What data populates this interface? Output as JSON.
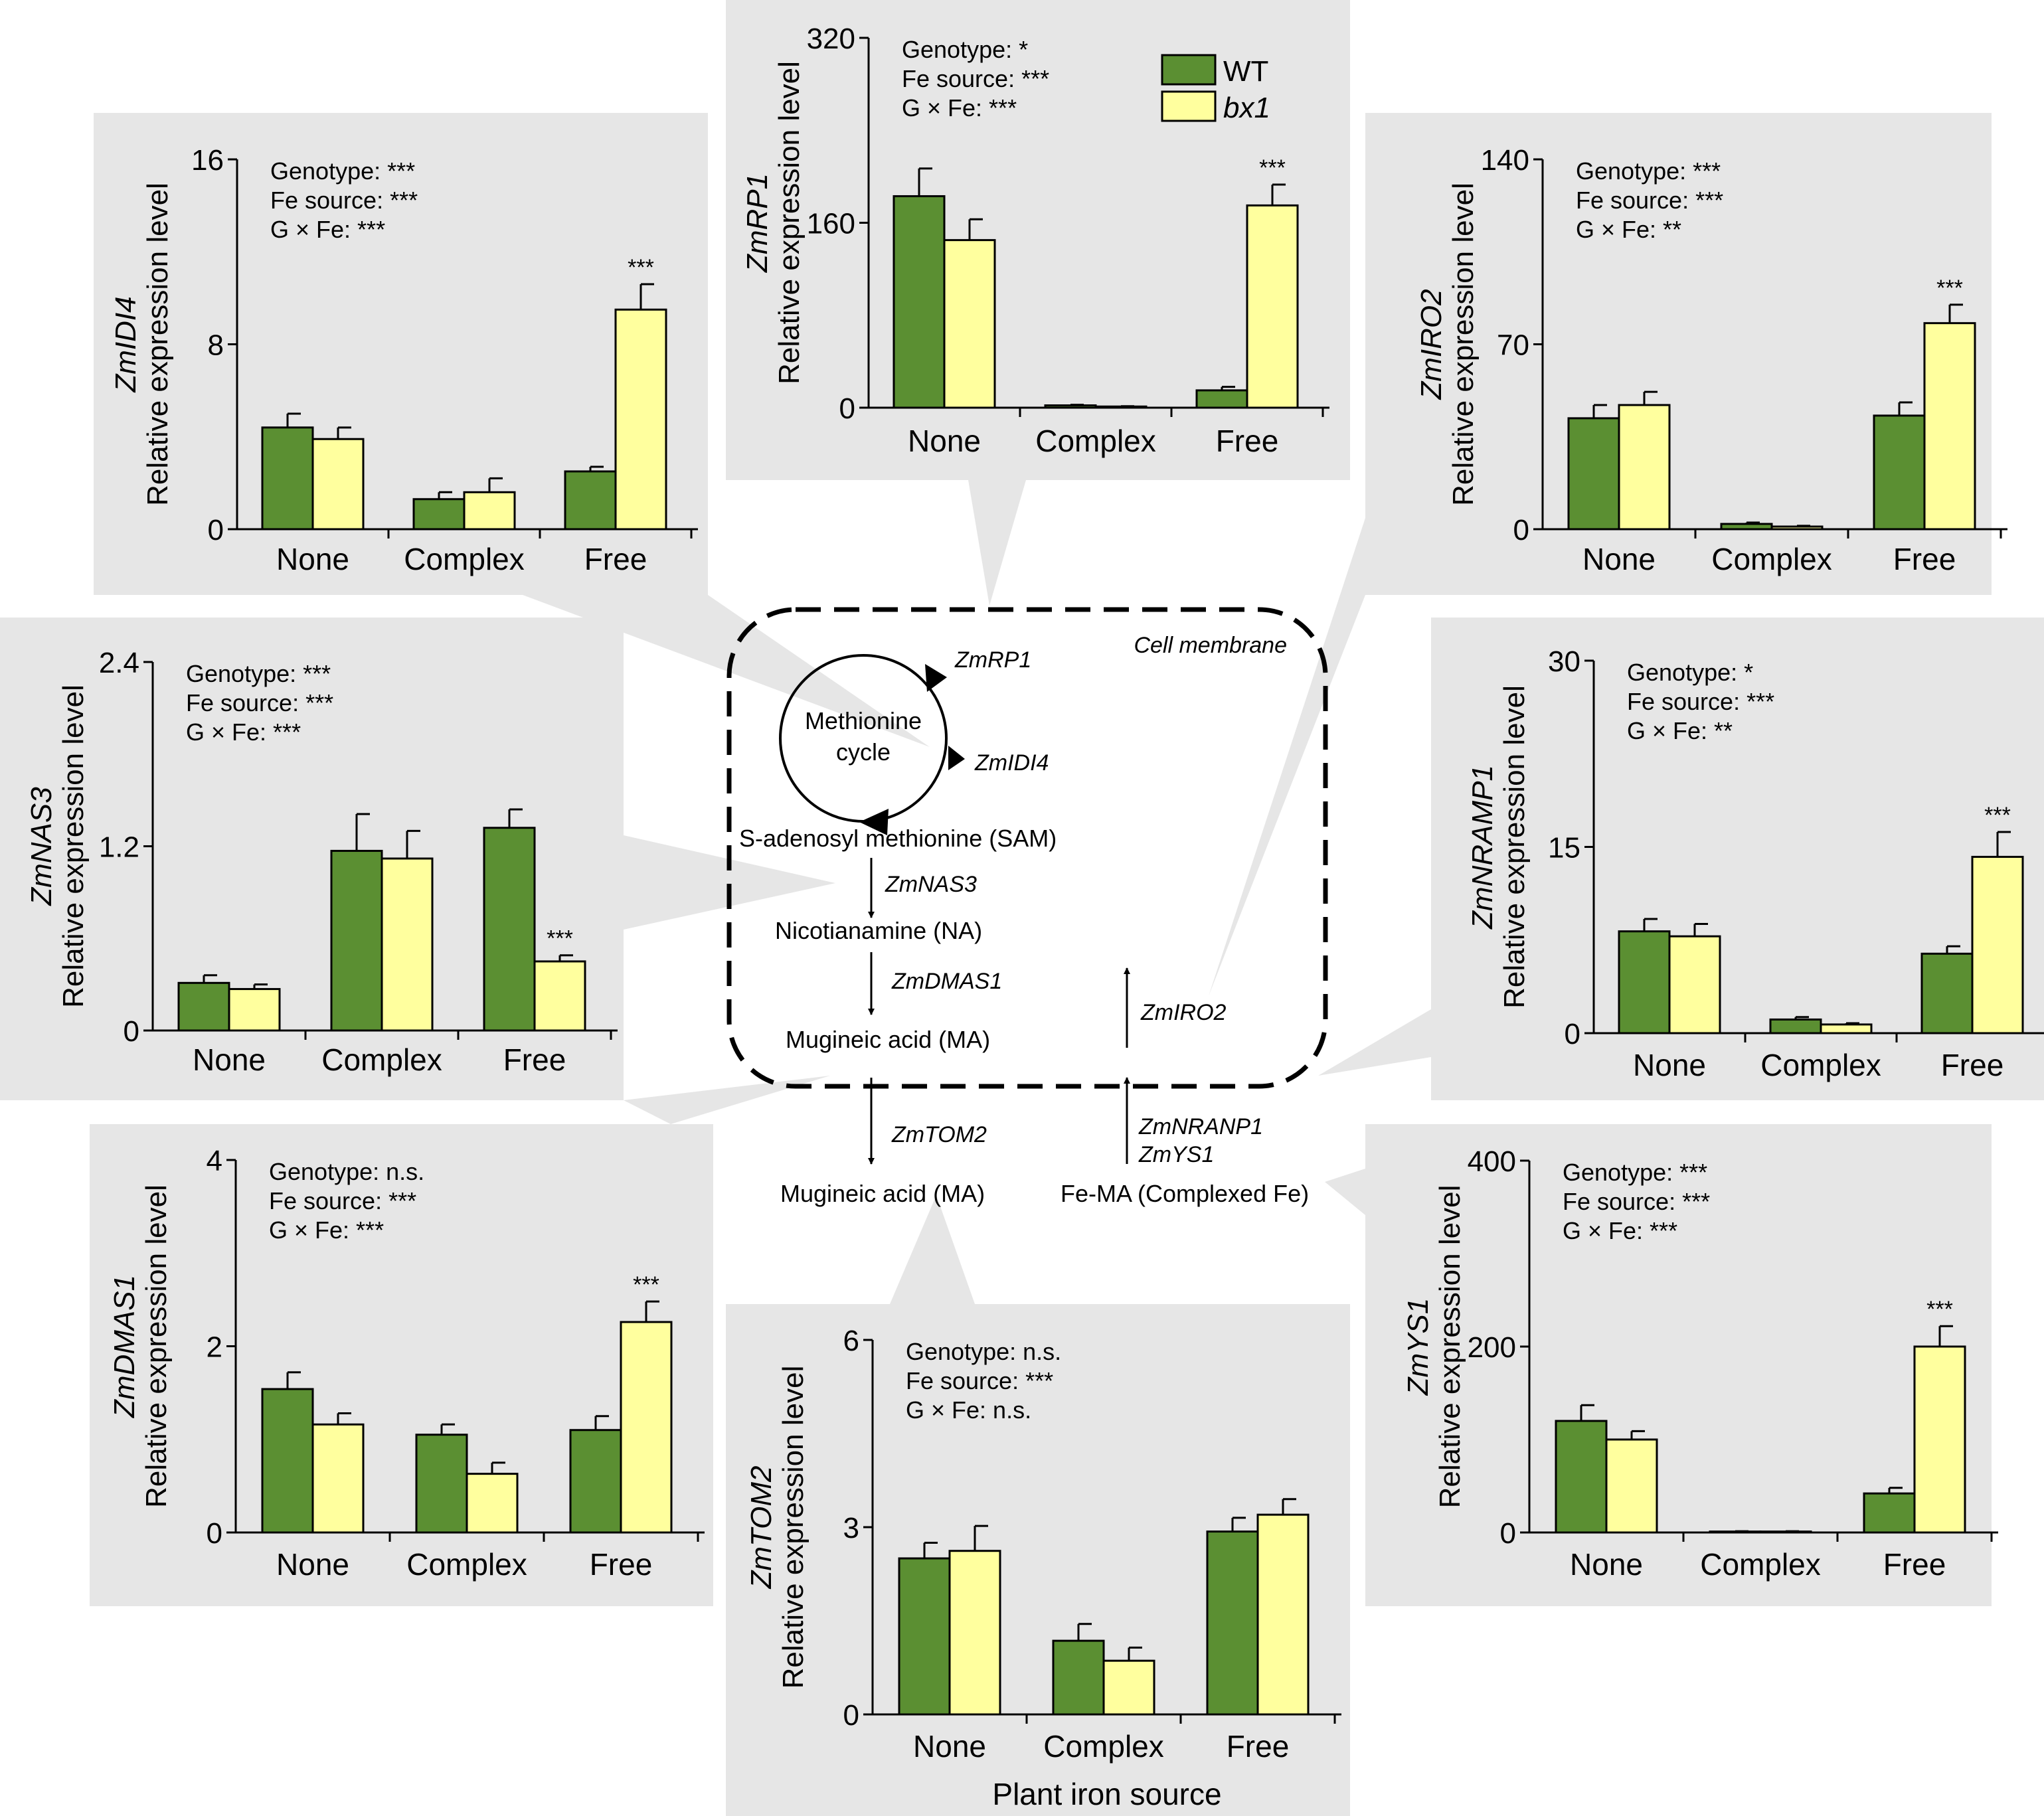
{
  "legend": {
    "entries": [
      {
        "name": "WT",
        "color": "#5b8f32"
      },
      {
        "name": "bx1",
        "color": "#ffff9e"
      }
    ],
    "placement": "top-center"
  },
  "colors": {
    "panel_background": "#e6e6e6",
    "wt": "#5b8f32",
    "bx1": "#ffff9e",
    "axis": "#000000"
  },
  "diagram": {
    "membrane_label": "Cell membrane",
    "cycle_label_line1": "Methionine",
    "cycle_label_line2": "cycle",
    "cycle_gene_1": "ZmRP1",
    "cycle_gene_2": "ZmIDI4",
    "sam": "S-adenosyl methionine (SAM)",
    "step_nas3": "ZmNAS3",
    "na": "Nicotianamine (NA)",
    "step_dmas1": "ZmDMAS1",
    "ma_inside": "Mugineic acid (MA)",
    "step_iro2": "ZmIRO2",
    "step_tom2": "ZmTOM2",
    "step_nranp1": "ZmNRANP1",
    "step_ys1": "ZmYS1",
    "ma_outside": "Mugineic acid (MA)",
    "fema": "Fe-MA (Complexed Fe)"
  },
  "chart_data": [
    {
      "id": "zmrp1",
      "type": "bar",
      "gene": "ZmRP1",
      "ylabel": "Relative expression level",
      "xlabel": "",
      "categories": [
        "None",
        "Complex",
        "Free"
      ],
      "series": [
        {
          "name": "WT",
          "values": [
            183,
            2,
            15
          ],
          "errors": [
            24,
            0.5,
            3
          ]
        },
        {
          "name": "bx1",
          "values": [
            145,
            1,
            175
          ],
          "errors": [
            18,
            0.3,
            18
          ]
        }
      ],
      "ylim": [
        0,
        320
      ],
      "yticks": [
        "0",
        "160",
        "320"
      ],
      "sig": [
        "",
        "",
        "***"
      ],
      "stats": [
        "Genotype: *",
        "Fe source: ***",
        "G × Fe: ***"
      ]
    },
    {
      "id": "zmidi4",
      "type": "bar",
      "gene": "ZmIDI4",
      "ylabel": "Relative expression level",
      "xlabel": "",
      "categories": [
        "None",
        "Complex",
        "Free"
      ],
      "series": [
        {
          "name": "WT",
          "values": [
            4.4,
            1.3,
            2.5
          ],
          "errors": [
            0.6,
            0.3,
            0.2
          ]
        },
        {
          "name": "bx1",
          "values": [
            3.9,
            1.6,
            9.5
          ],
          "errors": [
            0.5,
            0.6,
            1.1
          ]
        }
      ],
      "ylim": [
        0,
        16
      ],
      "yticks": [
        "0",
        "8",
        "16"
      ],
      "sig": [
        "",
        "",
        "***"
      ],
      "stats": [
        "Genotype: ***",
        "Fe source: ***",
        "G × Fe: ***"
      ]
    },
    {
      "id": "zmiro2",
      "type": "bar",
      "gene": "ZmIRO2",
      "ylabel": "Relative expression level",
      "xlabel": "",
      "categories": [
        "None",
        "Complex",
        "Free"
      ],
      "series": [
        {
          "name": "WT",
          "values": [
            42,
            2,
            43
          ],
          "errors": [
            5,
            0.5,
            5
          ]
        },
        {
          "name": "bx1",
          "values": [
            47,
            1,
            78
          ],
          "errors": [
            5,
            0.3,
            7
          ]
        }
      ],
      "ylim": [
        0,
        140
      ],
      "yticks": [
        "0",
        "70",
        "140"
      ],
      "sig": [
        "",
        "",
        "***"
      ],
      "stats": [
        "Genotype: ***",
        "Fe source: ***",
        "G × Fe: **"
      ]
    },
    {
      "id": "zmnas3",
      "type": "bar",
      "gene": "ZmNAS3",
      "ylabel": "Relative expression level",
      "xlabel": "",
      "categories": [
        "None",
        "Complex",
        "Free"
      ],
      "series": [
        {
          "name": "WT",
          "values": [
            0.31,
            1.17,
            1.32
          ],
          "errors": [
            0.05,
            0.24,
            0.12
          ]
        },
        {
          "name": "bx1",
          "values": [
            0.27,
            1.12,
            0.45
          ],
          "errors": [
            0.03,
            0.18,
            0.04
          ]
        }
      ],
      "ylim": [
        0,
        2.4
      ],
      "yticks": [
        "0",
        "1.2",
        "2.4"
      ],
      "sig": [
        "",
        "",
        "***"
      ],
      "stats": [
        "Genotype: ***",
        "Fe source: ***",
        "G × Fe: ***"
      ]
    },
    {
      "id": "zmnramp1",
      "type": "bar",
      "gene": "ZmNRAMP1",
      "ylabel": "Relative expression level",
      "xlabel": "",
      "categories": [
        "None",
        "Complex",
        "Free"
      ],
      "series": [
        {
          "name": "WT",
          "values": [
            8.2,
            1.1,
            6.4
          ],
          "errors": [
            1.0,
            0.2,
            0.6
          ]
        },
        {
          "name": "bx1",
          "values": [
            7.8,
            0.7,
            14.2
          ],
          "errors": [
            1.0,
            0.1,
            2.0
          ]
        }
      ],
      "ylim": [
        0,
        30
      ],
      "yticks": [
        "0",
        "15",
        "30"
      ],
      "sig": [
        "",
        "",
        "***"
      ],
      "stats": [
        "Genotype: *",
        "Fe source: ***",
        "G × Fe: **"
      ]
    },
    {
      "id": "zmdmas1",
      "type": "bar",
      "gene": "ZmDMAS1",
      "ylabel": "Relative expression level",
      "xlabel": "",
      "categories": [
        "None",
        "Complex",
        "Free"
      ],
      "series": [
        {
          "name": "WT",
          "values": [
            1.54,
            1.05,
            1.1
          ],
          "errors": [
            0.18,
            0.11,
            0.15
          ]
        },
        {
          "name": "bx1",
          "values": [
            1.16,
            0.63,
            2.26
          ],
          "errors": [
            0.12,
            0.12,
            0.22
          ]
        }
      ],
      "ylim": [
        0,
        4
      ],
      "yticks": [
        "0",
        "2",
        "4"
      ],
      "sig": [
        "",
        "",
        "***"
      ],
      "stats": [
        "Genotype: n.s.",
        "Fe source: ***",
        "G × Fe: ***"
      ]
    },
    {
      "id": "zmtom2",
      "type": "bar",
      "gene": "ZmTOM2",
      "ylabel": "Relative expression level",
      "xlabel": "Plant iron source",
      "categories": [
        "None",
        "Complex",
        "Free"
      ],
      "series": [
        {
          "name": "WT",
          "values": [
            2.5,
            1.18,
            2.93
          ],
          "errors": [
            0.25,
            0.27,
            0.22
          ]
        },
        {
          "name": "bx1",
          "values": [
            2.62,
            0.86,
            3.2
          ],
          "errors": [
            0.4,
            0.21,
            0.25
          ]
        }
      ],
      "ylim": [
        0,
        6
      ],
      "yticks": [
        "0",
        "3",
        "6"
      ],
      "sig": [
        "",
        "",
        ""
      ],
      "stats": [
        "Genotype: n.s.",
        "Fe source: ***",
        "G × Fe: n.s."
      ]
    },
    {
      "id": "zmys1",
      "type": "bar",
      "gene": "ZmYS1",
      "ylabel": "Relative expression level",
      "xlabel": "",
      "categories": [
        "None",
        "Complex",
        "Free"
      ],
      "series": [
        {
          "name": "WT",
          "values": [
            120,
            1,
            42
          ],
          "errors": [
            17,
            0.3,
            6
          ]
        },
        {
          "name": "bx1",
          "values": [
            100,
            1,
            200
          ],
          "errors": [
            9,
            0.3,
            22
          ]
        }
      ],
      "ylim": [
        0,
        400
      ],
      "yticks": [
        "0",
        "200",
        "400"
      ],
      "sig": [
        "",
        "",
        "***"
      ],
      "stats": [
        "Genotype: ***",
        "Fe source: ***",
        "G × Fe: ***"
      ]
    }
  ]
}
